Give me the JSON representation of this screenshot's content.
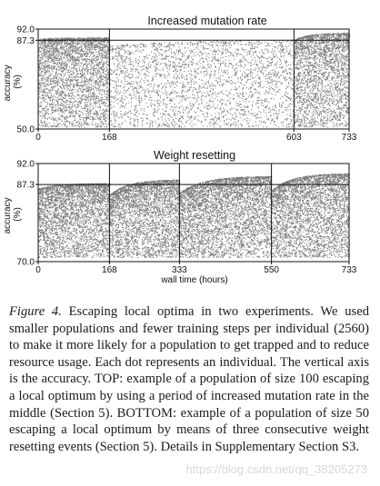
{
  "chart_data": [
    {
      "type": "scatter",
      "title": "Increased mutation rate",
      "xlabel": "",
      "ylabel": "accuracy\n(%)",
      "xlim": [
        0,
        733
      ],
      "ylim": [
        50.0,
        92.0
      ],
      "xticks": [
        0,
        168,
        603,
        733
      ],
      "yticks": [
        50.0,
        87.3,
        92.0
      ],
      "xtick_labels": [
        "0",
        "168",
        "603",
        "733"
      ],
      "ytick_labels": [
        "50.0",
        "87.3",
        "92.0"
      ],
      "reference_line_y": 87.3,
      "event_lines_x": [
        168,
        603
      ],
      "grid": false,
      "point_color": "#7a7a7a",
      "phases": [
        {
          "x_start": 0,
          "x_end": 168,
          "y_top_start": 88.0,
          "y_top_end": 88.5,
          "y_min": 51.0,
          "density": "dense"
        },
        {
          "x_start": 168,
          "x_end": 603,
          "y_top_start": 85.0,
          "y_top_end": 87.3,
          "y_min": 51.0,
          "density": "sparse"
        },
        {
          "x_start": 603,
          "x_end": 733,
          "y_top_start": 87.5,
          "y_top_end": 90.5,
          "y_min": 51.0,
          "density": "dense"
        }
      ]
    },
    {
      "type": "scatter",
      "title": "Weight resetting",
      "xlabel": "wall time (hours)",
      "ylabel": "accuracy\n(%)",
      "xlim": [
        0,
        733
      ],
      "ylim": [
        70.0,
        92.0
      ],
      "xticks": [
        0,
        168,
        333,
        550,
        733
      ],
      "yticks": [
        70.0,
        87.3,
        92.0
      ],
      "xtick_labels": [
        "0",
        "168",
        "333",
        "550",
        "733"
      ],
      "ytick_labels": [
        "70.0",
        "87.3",
        "92.0"
      ],
      "reference_line_y": 87.3,
      "event_lines_x": [
        168,
        333,
        550
      ],
      "grid": false,
      "point_color": "#7a7a7a",
      "phases": [
        {
          "x_start": 0,
          "x_end": 168,
          "y_top_start": 86.5,
          "y_top_end": 87.6,
          "y_min": 71.0,
          "density": "dense"
        },
        {
          "x_start": 168,
          "x_end": 333,
          "y_top_start": 85.0,
          "y_top_end": 88.4,
          "y_min": 71.0,
          "density": "dense"
        },
        {
          "x_start": 333,
          "x_end": 550,
          "y_top_start": 85.5,
          "y_top_end": 89.2,
          "y_min": 71.0,
          "density": "dense"
        },
        {
          "x_start": 550,
          "x_end": 733,
          "y_top_start": 86.0,
          "y_top_end": 89.8,
          "y_min": 71.0,
          "density": "dense"
        }
      ]
    }
  ],
  "caption": {
    "figure_label": "Figure 4.",
    "text": "Escaping local optima in two experiments. We used smaller populations and fewer training steps per individual (2560) to make it more likely for a population to get trapped and to reduce resource usage. Each dot represents an individual. The vertical axis is the accuracy. TOP: example of a population of size 100 escaping a local optimum by using a period of increased mutation rate in the middle (Section 5). BOTTOM: example of a population of size 50 escaping a local optimum by means of three consecutive weight resetting events (Section 5). Details in Supplementary Section S3."
  },
  "watermark": "https://blog.csdn.net/qq_38205273"
}
